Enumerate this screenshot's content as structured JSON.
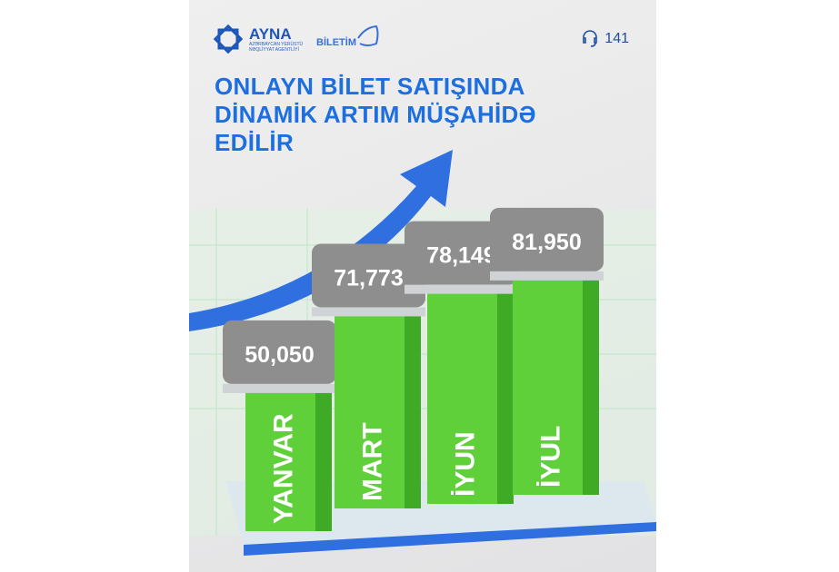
{
  "header": {
    "logo_ayna": "AYNA",
    "logo_ayna_sub": "AZƏRBAYCAN YERÜSTÜ NƏQLİYYAT AGENTLİYİ",
    "logo_biletim": "BİLETİM",
    "hotline": "141"
  },
  "title": "ONLAYN BİLET SATIŞINDA DİNAMİK ARTIM MÜŞAHİDƏ EDİLİR",
  "colors": {
    "title": "#1d6fe0",
    "bar": "#5fcf3a",
    "label_box": "#8e8e8e",
    "arrow": "#2f6fe0"
  },
  "chart_data": {
    "type": "bar",
    "title": "ONLAYN BİLET SATIŞINDA DİNAMİK ARTIM MÜŞAHİDƏ EDİLİR",
    "categories": [
      "YANVAR",
      "MART",
      "İYUN",
      "İYUL"
    ],
    "values": [
      50050,
      71773,
      78149,
      81950
    ],
    "data_labels": [
      "50,050",
      "71,773",
      "78,149",
      "81,950"
    ],
    "xlabel": "",
    "ylabel": ""
  }
}
